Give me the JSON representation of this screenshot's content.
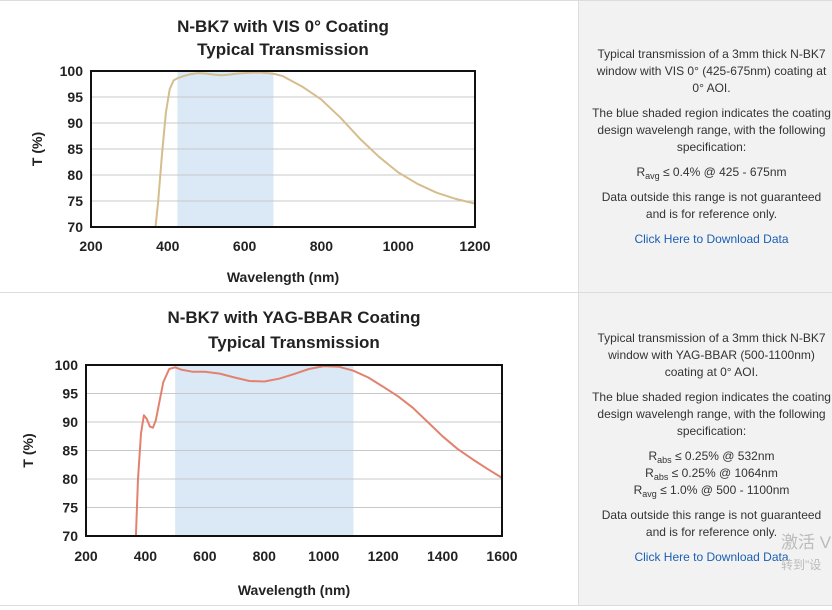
{
  "chart_data": [
    {
      "type": "line",
      "title_line1": "N-BK7 with VIS 0° Coating",
      "title_line2": "Typical Transmission",
      "xlabel": "Wavelength (nm)",
      "ylabel": "T (%)",
      "xlim": [
        200,
        1200
      ],
      "ylim": [
        70,
        100
      ],
      "xticks": [
        200,
        400,
        600,
        800,
        1000,
        1200
      ],
      "yticks": [
        70,
        75,
        80,
        85,
        90,
        95,
        100
      ],
      "grid": true,
      "shaded_range": [
        425,
        675
      ],
      "series": [
        {
          "color": "#d6bd8e",
          "x": [
            368,
            375,
            385,
            395,
            405,
            415,
            425,
            440,
            460,
            480,
            500,
            520,
            540,
            560,
            580,
            600,
            620,
            640,
            660,
            680,
            700,
            750,
            800,
            850,
            900,
            950,
            1000,
            1050,
            1100,
            1150,
            1200
          ],
          "y": [
            70,
            75,
            84,
            92,
            96.5,
            98.2,
            98.6,
            99.0,
            99.4,
            99.6,
            99.5,
            99.3,
            99.2,
            99.3,
            99.5,
            99.6,
            99.7,
            99.7,
            99.6,
            99.4,
            99.0,
            97.0,
            94.5,
            91.0,
            87.0,
            83.5,
            80.5,
            78.3,
            76.6,
            75.4,
            74.5
          ]
        }
      ]
    },
    {
      "type": "line",
      "title_line1": "N-BK7 with YAG-BBAR Coating",
      "title_line2": "Typical Transmission",
      "xlabel": "Wavelength (nm)",
      "ylabel": "T (%)",
      "xlim": [
        200,
        1600
      ],
      "ylim": [
        70,
        100
      ],
      "xticks": [
        200,
        400,
        600,
        800,
        1000,
        1200,
        1400,
        1600
      ],
      "yticks": [
        70,
        75,
        80,
        85,
        90,
        95,
        100
      ],
      "grid": true,
      "shaded_range": [
        500,
        1100
      ],
      "series": [
        {
          "color": "#e2826e",
          "x": [
            368,
            375,
            385,
            395,
            405,
            415,
            425,
            435,
            445,
            460,
            480,
            500,
            520,
            560,
            600,
            650,
            700,
            750,
            800,
            850,
            900,
            950,
            1000,
            1050,
            1100,
            1150,
            1200,
            1250,
            1300,
            1350,
            1400,
            1450,
            1500,
            1550,
            1600
          ],
          "y": [
            70,
            80,
            88,
            91.2,
            90.5,
            89.2,
            89.0,
            90.3,
            93.0,
            97.0,
            99.3,
            99.6,
            99.2,
            98.8,
            98.8,
            98.5,
            97.8,
            97.2,
            97.1,
            97.6,
            98.4,
            99.3,
            99.8,
            99.7,
            99.0,
            97.8,
            96.2,
            94.5,
            92.5,
            90.0,
            87.5,
            85.3,
            83.5,
            81.8,
            80.2
          ]
        }
      ]
    }
  ],
  "panels": [
    {
      "description": "Typical transmission of a 3mm thick N-BK7 window with VIS 0° (425-675nm) coating at 0° AOI.",
      "shading_note": "The blue shaded region indicates the coating design wavelengh range, with the following specification:",
      "specs": [
        {
          "symbol": "R",
          "sub": "avg",
          "text": " ≤ 0.4% @ 425 - 675nm"
        }
      ],
      "disclaimer": "Data outside this range is not guaranteed and is for reference only.",
      "link": "Click Here to Download Data"
    },
    {
      "description": "Typical transmission of a 3mm thick N-BK7 window with YAG-BBAR (500-1100nm) coating at 0° AOI.",
      "shading_note": "The blue shaded region indicates the coating design wavelengh range, with the following specification:",
      "specs": [
        {
          "symbol": "R",
          "sub": "abs",
          "text": " ≤ 0.25% @ 532nm"
        },
        {
          "symbol": "R",
          "sub": "abs",
          "text": " ≤ 0.25% @ 1064nm"
        },
        {
          "symbol": "R",
          "sub": "avg",
          "text": " ≤ 1.0% @ 500 - 1100nm"
        }
      ],
      "disclaimer": "Data outside this range is not guaranteed and is for reference only.",
      "link": "Click Here to Download Data"
    }
  ],
  "overlay": {
    "watermark_line1": "激活 V",
    "watermark_line2": "转到\"设"
  },
  "colors": {
    "shade": "#dbe9f6",
    "grid": "#c8c8c8",
    "panel_bg": "#f2f2f2",
    "link": "#1a5fb4"
  }
}
